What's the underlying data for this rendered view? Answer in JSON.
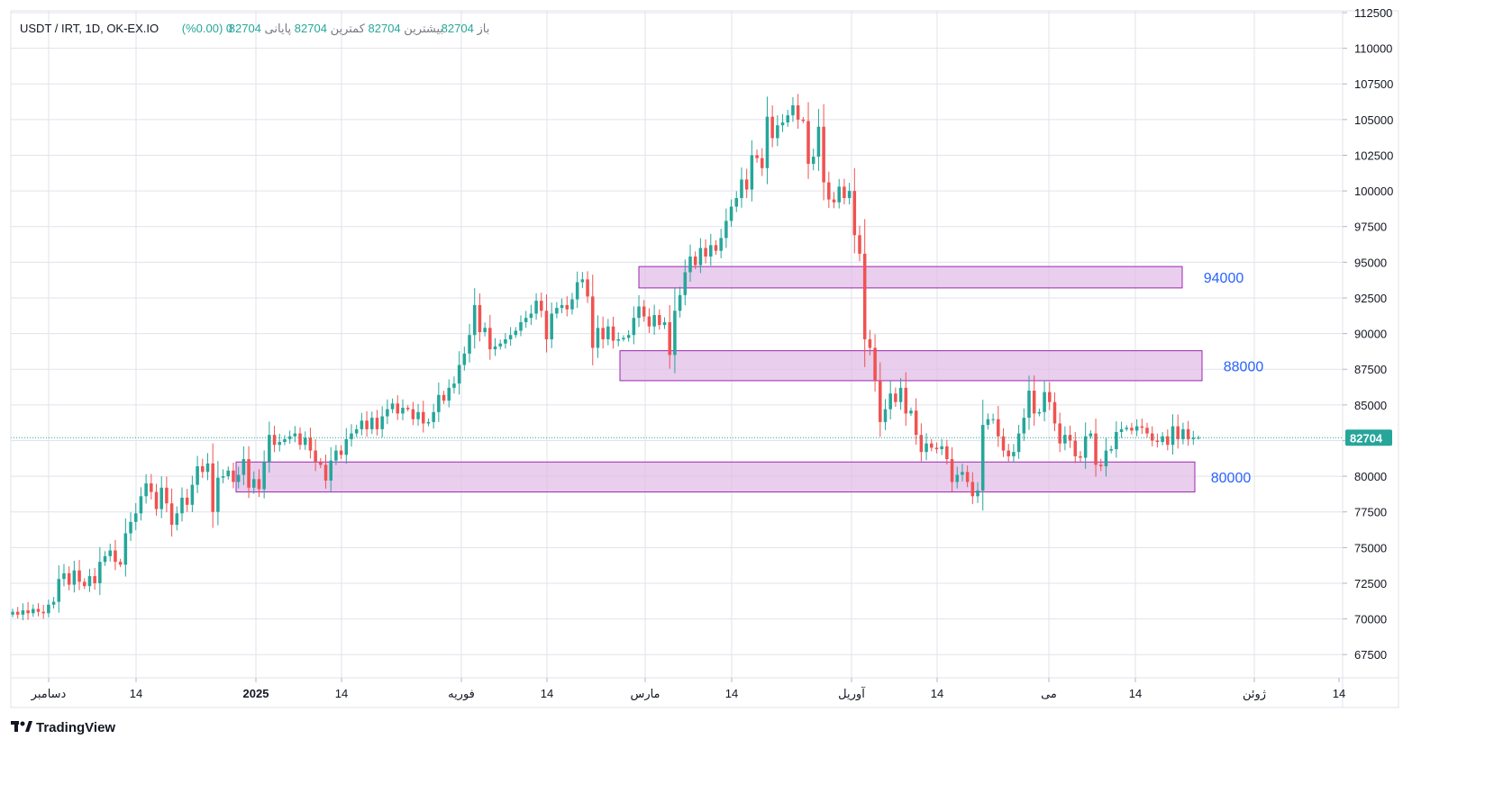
{
  "header": {
    "symbol": "USDT / IRT, 1D, OK-EX.IO",
    "open_label": "باز",
    "open_value": "82704",
    "high_label": "بیشترین",
    "high_value": "82704",
    "low_label": "کمترین",
    "low_value": "82704",
    "close_label": "پایانی",
    "close_value": "82704",
    "change": "0 (0.00%)"
  },
  "brand": {
    "name": "TradingView"
  },
  "last_price": "82704",
  "colors": {
    "up": "#26a69a",
    "down": "#ef5350",
    "zone_fill": "#e1bee7",
    "zone_stroke": "#9c27b0",
    "label": "#2962ff",
    "grid": "#e0e3eb"
  },
  "chart_data": {
    "type": "candlestick",
    "title": "USDT / IRT, 1D, OK-EX.IO",
    "ylim": [
      66000,
      112500
    ],
    "y_ticks": [
      "67500",
      "70000",
      "72500",
      "75000",
      "77500",
      "80000",
      "82500",
      "85000",
      "87500",
      "90000",
      "92500",
      "95000",
      "97500",
      "100000",
      "102500",
      "105000",
      "107500",
      "110000",
      "112500"
    ],
    "x_ticks": [
      {
        "label": "دسامبر",
        "bold": false
      },
      {
        "label": "14",
        "bold": false
      },
      {
        "label": "2025",
        "bold": true
      },
      {
        "label": "14",
        "bold": false
      },
      {
        "label": "فوریه",
        "bold": false
      },
      {
        "label": "14",
        "bold": false
      },
      {
        "label": "مارس",
        "bold": false
      },
      {
        "label": "14",
        "bold": false
      },
      {
        "label": "آوریل",
        "bold": false
      },
      {
        "label": "14",
        "bold": false
      },
      {
        "label": "می",
        "bold": false
      },
      {
        "label": "14",
        "bold": false
      },
      {
        "label": "ژوئن",
        "bold": false
      },
      {
        "label": "14",
        "bold": false
      }
    ],
    "closes": [
      70500,
      70300,
      70600,
      70400,
      70700,
      70500,
      70400,
      71000,
      71200,
      72800,
      73200,
      72400,
      73400,
      72600,
      72300,
      73000,
      72500,
      74000,
      74400,
      74800,
      74000,
      73800,
      76000,
      76800,
      77400,
      78600,
      79500,
      78900,
      77700,
      79200,
      78100,
      76600,
      77400,
      78500,
      78000,
      79400,
      80700,
      80300,
      80900,
      77500,
      79900,
      80000,
      80400,
      79600,
      80100,
      81200,
      79200,
      79800,
      79100,
      81000,
      82900,
      82200,
      82400,
      82600,
      82800,
      83000,
      82200,
      82700,
      81800,
      81000,
      80800,
      79700,
      81100,
      81800,
      81500,
      82600,
      83000,
      83300,
      83900,
      83300,
      84100,
      83300,
      84200,
      84700,
      85100,
      84400,
      84800,
      84700,
      84000,
      84500,
      83700,
      83800,
      84500,
      85700,
      85300,
      86200,
      86500,
      87800,
      88600,
      89900,
      92000,
      90100,
      90400,
      88900,
      89100,
      89300,
      89600,
      89900,
      90200,
      90800,
      91100,
      91400,
      92300,
      91600,
      89600,
      91400,
      91800,
      92000,
      91700,
      92400,
      93600,
      93800,
      92600,
      89000,
      90400,
      89600,
      90500,
      89500,
      89600,
      89700,
      89900,
      91100,
      91900,
      91200,
      90500,
      91300,
      90600,
      90800,
      88500,
      91600,
      92700,
      94300,
      95400,
      94800,
      96000,
      95400,
      96200,
      95800,
      96700,
      97900,
      98900,
      99500,
      100800,
      100100,
      102500,
      102300,
      101600,
      105200,
      103700,
      104600,
      104800,
      105300,
      106000,
      105000,
      104900,
      101900,
      102400,
      104500,
      100600,
      99400,
      99200,
      100300,
      99500,
      100000,
      96900,
      95600,
      89600,
      89000,
      86700,
      83800,
      84700,
      85800,
      85200,
      86200,
      84400,
      84600,
      82900,
      81700,
      82300,
      82000,
      81900,
      82100,
      81200,
      79600,
      80100,
      80300,
      79600,
      78600,
      79000,
      83600,
      84000,
      84000,
      82800,
      81800,
      81400,
      81700,
      83000,
      84100,
      86000,
      84400,
      84500,
      85900,
      85200,
      83700,
      82300,
      82900,
      82500,
      81400,
      81300,
      82800,
      83000,
      80800,
      80700,
      81800,
      81900,
      83100,
      83300,
      83400,
      83200,
      83500,
      83400,
      83000,
      82500,
      82400,
      82800,
      82200,
      83500,
      82600,
      83300,
      82600,
      82700,
      82704
    ],
    "zones": [
      {
        "top": 94700,
        "bottom": 93200,
        "label": "94000"
      },
      {
        "top": 88800,
        "bottom": 86700,
        "label": "88000"
      },
      {
        "top": 81000,
        "bottom": 78900,
        "label": "80000"
      }
    ]
  }
}
